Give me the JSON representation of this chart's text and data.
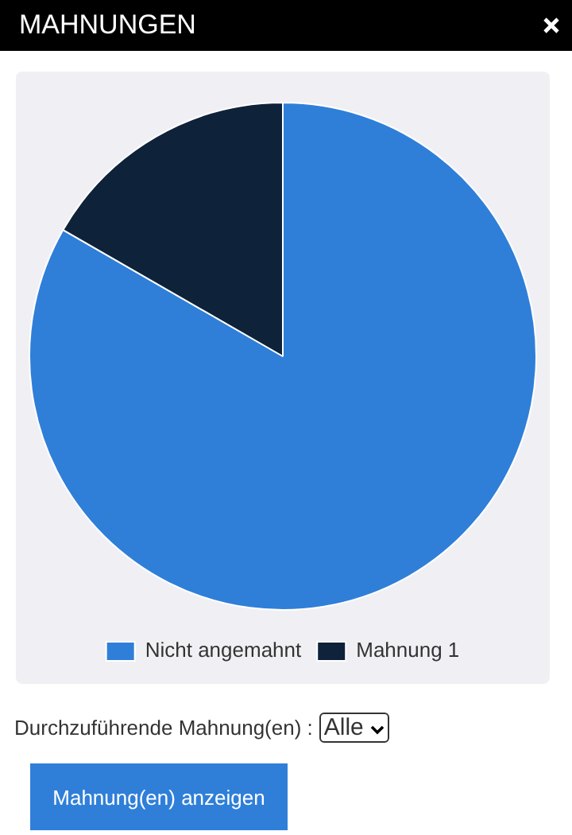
{
  "chart_data": {
    "type": "pie",
    "title": "MAHNUNGEN",
    "categories": [
      "Nicht angemahnt",
      "Mahnung 1"
    ],
    "values": [
      83.3,
      16.7
    ],
    "colors": [
      "#2f7fd9",
      "#0e2239"
    ],
    "legend": "bottom",
    "annotations": [
      "Durchzuführende Mahnung(en) :",
      "Alle",
      "Mahnung(en) anzeigen"
    ]
  }
}
